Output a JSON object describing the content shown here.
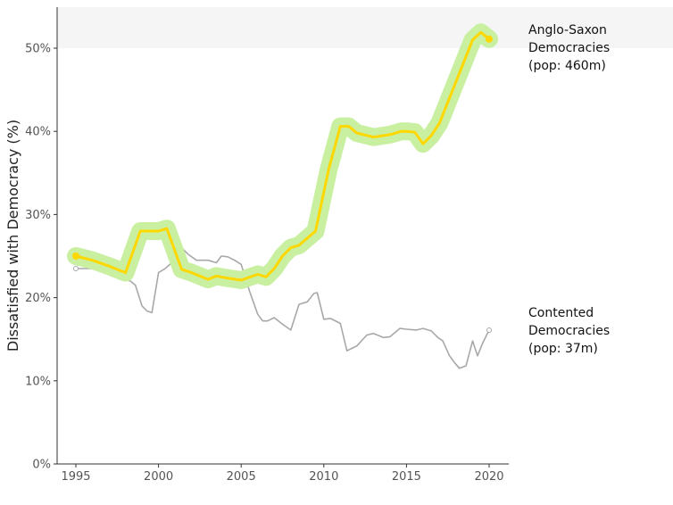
{
  "chart_data": {
    "type": "line",
    "title": "",
    "xlabel": "",
    "ylabel": "Dissatisfied with Democracy (%)",
    "xlim": [
      1994,
      2021
    ],
    "ylim": [
      0,
      55
    ],
    "x_ticks": [
      1995,
      2000,
      2005,
      2010,
      2015,
      2020
    ],
    "x_tick_labels": [
      "1995",
      "2000",
      "2005",
      "2010",
      "2015",
      "2020"
    ],
    "y_ticks": [
      0,
      10,
      20,
      30,
      40,
      50
    ],
    "y_tick_labels": [
      "0%",
      "10%",
      "20%",
      "30%",
      "40%",
      "50%"
    ],
    "grid": false,
    "colors": {
      "highlight_line": "#FFD700",
      "highlight_glow": "#C8F0A0",
      "muted_line": "#A8A8A8",
      "axis": "#333333",
      "top_band": "#F5F5F5"
    },
    "series": [
      {
        "name_lines": [
          "Anglo-Saxon",
          "Democracies",
          "(pop: 460m)"
        ],
        "style": "highlight",
        "x": [
          1995,
          1996,
          1997,
          1998,
          1998.9,
          2000,
          2000.5,
          2001.4,
          2002,
          2003,
          2003.5,
          2004,
          2005,
          2006,
          2006.5,
          2007,
          2007.5,
          2008,
          2008.5,
          2009.5,
          2010.3,
          2011,
          2011.5,
          2012,
          2013,
          2014,
          2014.7,
          2015,
          2015.5,
          2016,
          2016.5,
          2017,
          2017.5,
          2018,
          2019,
          2019.5,
          2020
        ],
        "y": [
          25.0,
          24.5,
          23.8,
          23.0,
          28.0,
          28.0,
          28.3,
          23.4,
          23.0,
          22.2,
          22.6,
          22.4,
          22.1,
          22.8,
          22.5,
          23.5,
          25.0,
          26.0,
          26.3,
          28.0,
          35.5,
          40.6,
          40.6,
          39.8,
          39.3,
          39.6,
          40.0,
          40.0,
          39.9,
          38.5,
          39.5,
          41.0,
          43.5,
          46.0,
          51.0,
          51.9,
          51.1
        ]
      },
      {
        "name_lines": [
          "Contented",
          "Democracies",
          "(pop: 37m)"
        ],
        "style": "muted",
        "x": [
          1995,
          1996,
          1997,
          1998,
          1998.3,
          1998.6,
          1999,
          1999.3,
          1999.6,
          2000,
          2000.4,
          2000.8,
          2001.4,
          2001.8,
          2002.3,
          2003,
          2003.5,
          2003.8,
          2004.2,
          2004.6,
          2005,
          2005.5,
          2006,
          2006.3,
          2006.6,
          2007,
          2007.5,
          2008,
          2008.5,
          2009,
          2009.4,
          2009.6,
          2010,
          2010.4,
          2011,
          2011.4,
          2011.8,
          2012,
          2012.6,
          2013,
          2013.6,
          2014,
          2014.6,
          2015,
          2015.6,
          2016,
          2016.5,
          2016.9,
          2017.2,
          2017.6,
          2017.9,
          2018.2,
          2018.6,
          2019,
          2019.3,
          2019.6,
          2020
        ],
        "y": [
          23.5,
          23.5,
          23.5,
          22.2,
          22.0,
          21.5,
          19.0,
          18.4,
          18.2,
          23.0,
          23.5,
          24.2,
          26.0,
          25.2,
          24.5,
          24.5,
          24.2,
          25.0,
          24.9,
          24.5,
          24.0,
          20.8,
          18.0,
          17.2,
          17.2,
          17.6,
          16.8,
          16.1,
          19.2,
          19.5,
          20.5,
          20.6,
          17.4,
          17.5,
          16.9,
          13.6,
          14.0,
          14.2,
          15.5,
          15.7,
          15.2,
          15.3,
          16.3,
          16.2,
          16.1,
          16.3,
          16.0,
          15.2,
          14.8,
          13.0,
          12.2,
          11.5,
          11.8,
          14.8,
          13.0,
          14.5,
          16.1
        ]
      }
    ]
  }
}
